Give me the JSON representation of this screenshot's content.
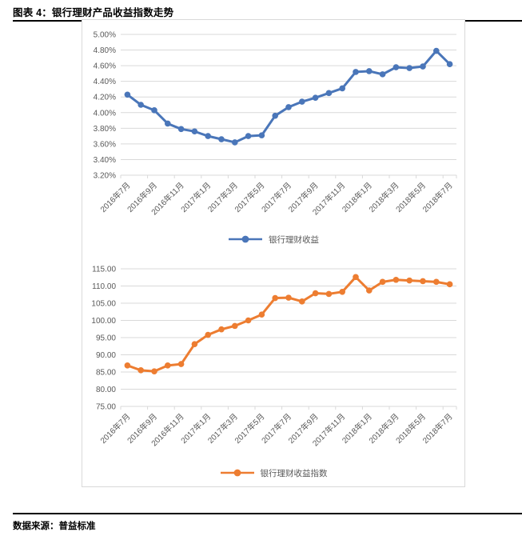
{
  "page": {
    "title": "图表 4：银行理财产品收益指数走势",
    "source": "数据来源：普益标准"
  },
  "colors": {
    "grid": "#d9d9d9",
    "axis_text": "#595959",
    "rule": "#000000"
  },
  "chart_data": [
    {
      "type": "line",
      "legend": "银行理财收益",
      "color": "#4a76b9",
      "grid": true,
      "legend_position": "bottom",
      "x_labels": [
        "2016年7月",
        "2016年9月",
        "2016年11月",
        "2017年1月",
        "2017年3月",
        "2017年5月",
        "2017年7月",
        "2017年9月",
        "2017年11月",
        "2018年1月",
        "2018年3月",
        "2018年5月",
        "2018年7月"
      ],
      "label_every": 2,
      "values": [
        4.23,
        4.1,
        4.03,
        3.86,
        3.79,
        3.76,
        3.7,
        3.66,
        3.62,
        3.7,
        3.71,
        3.96,
        4.07,
        4.14,
        4.19,
        4.25,
        4.31,
        4.52,
        4.53,
        4.49,
        4.58,
        4.57,
        4.59,
        4.79,
        4.62
      ],
      "ylim": [
        3.2,
        5.0
      ],
      "ytick_step": 0.2,
      "y_tick_labels": [
        "5.00%",
        "4.80%",
        "4.60%",
        "4.40%",
        "4.20%",
        "4.00%",
        "3.80%",
        "3.60%",
        "3.40%",
        "3.20%"
      ]
    },
    {
      "type": "line",
      "legend": "银行理财收益指数",
      "color": "#ed7d31",
      "grid": true,
      "legend_position": "bottom",
      "x_labels": [
        "2016年7月",
        "2016年9月",
        "2016年11月",
        "2017年1月",
        "2017年3月",
        "2017年5月",
        "2017年7月",
        "2017年9月",
        "2017年11月",
        "2018年1月",
        "2018年3月",
        "2018年5月",
        "2018年7月"
      ],
      "label_every": 2,
      "values": [
        86.9,
        85.5,
        85.2,
        86.9,
        87.3,
        93.1,
        95.8,
        97.4,
        98.4,
        100.0,
        101.7,
        106.5,
        106.6,
        105.5,
        107.9,
        107.7,
        108.3,
        112.6,
        108.7,
        111.2,
        111.8,
        111.6,
        111.4,
        111.2,
        110.5
      ],
      "ylim": [
        75,
        115
      ],
      "ytick_step": 5,
      "y_tick_labels": [
        "115.00",
        "110.00",
        "105.00",
        "100.00",
        "95.00",
        "90.00",
        "85.00",
        "80.00",
        "75.00"
      ]
    }
  ]
}
